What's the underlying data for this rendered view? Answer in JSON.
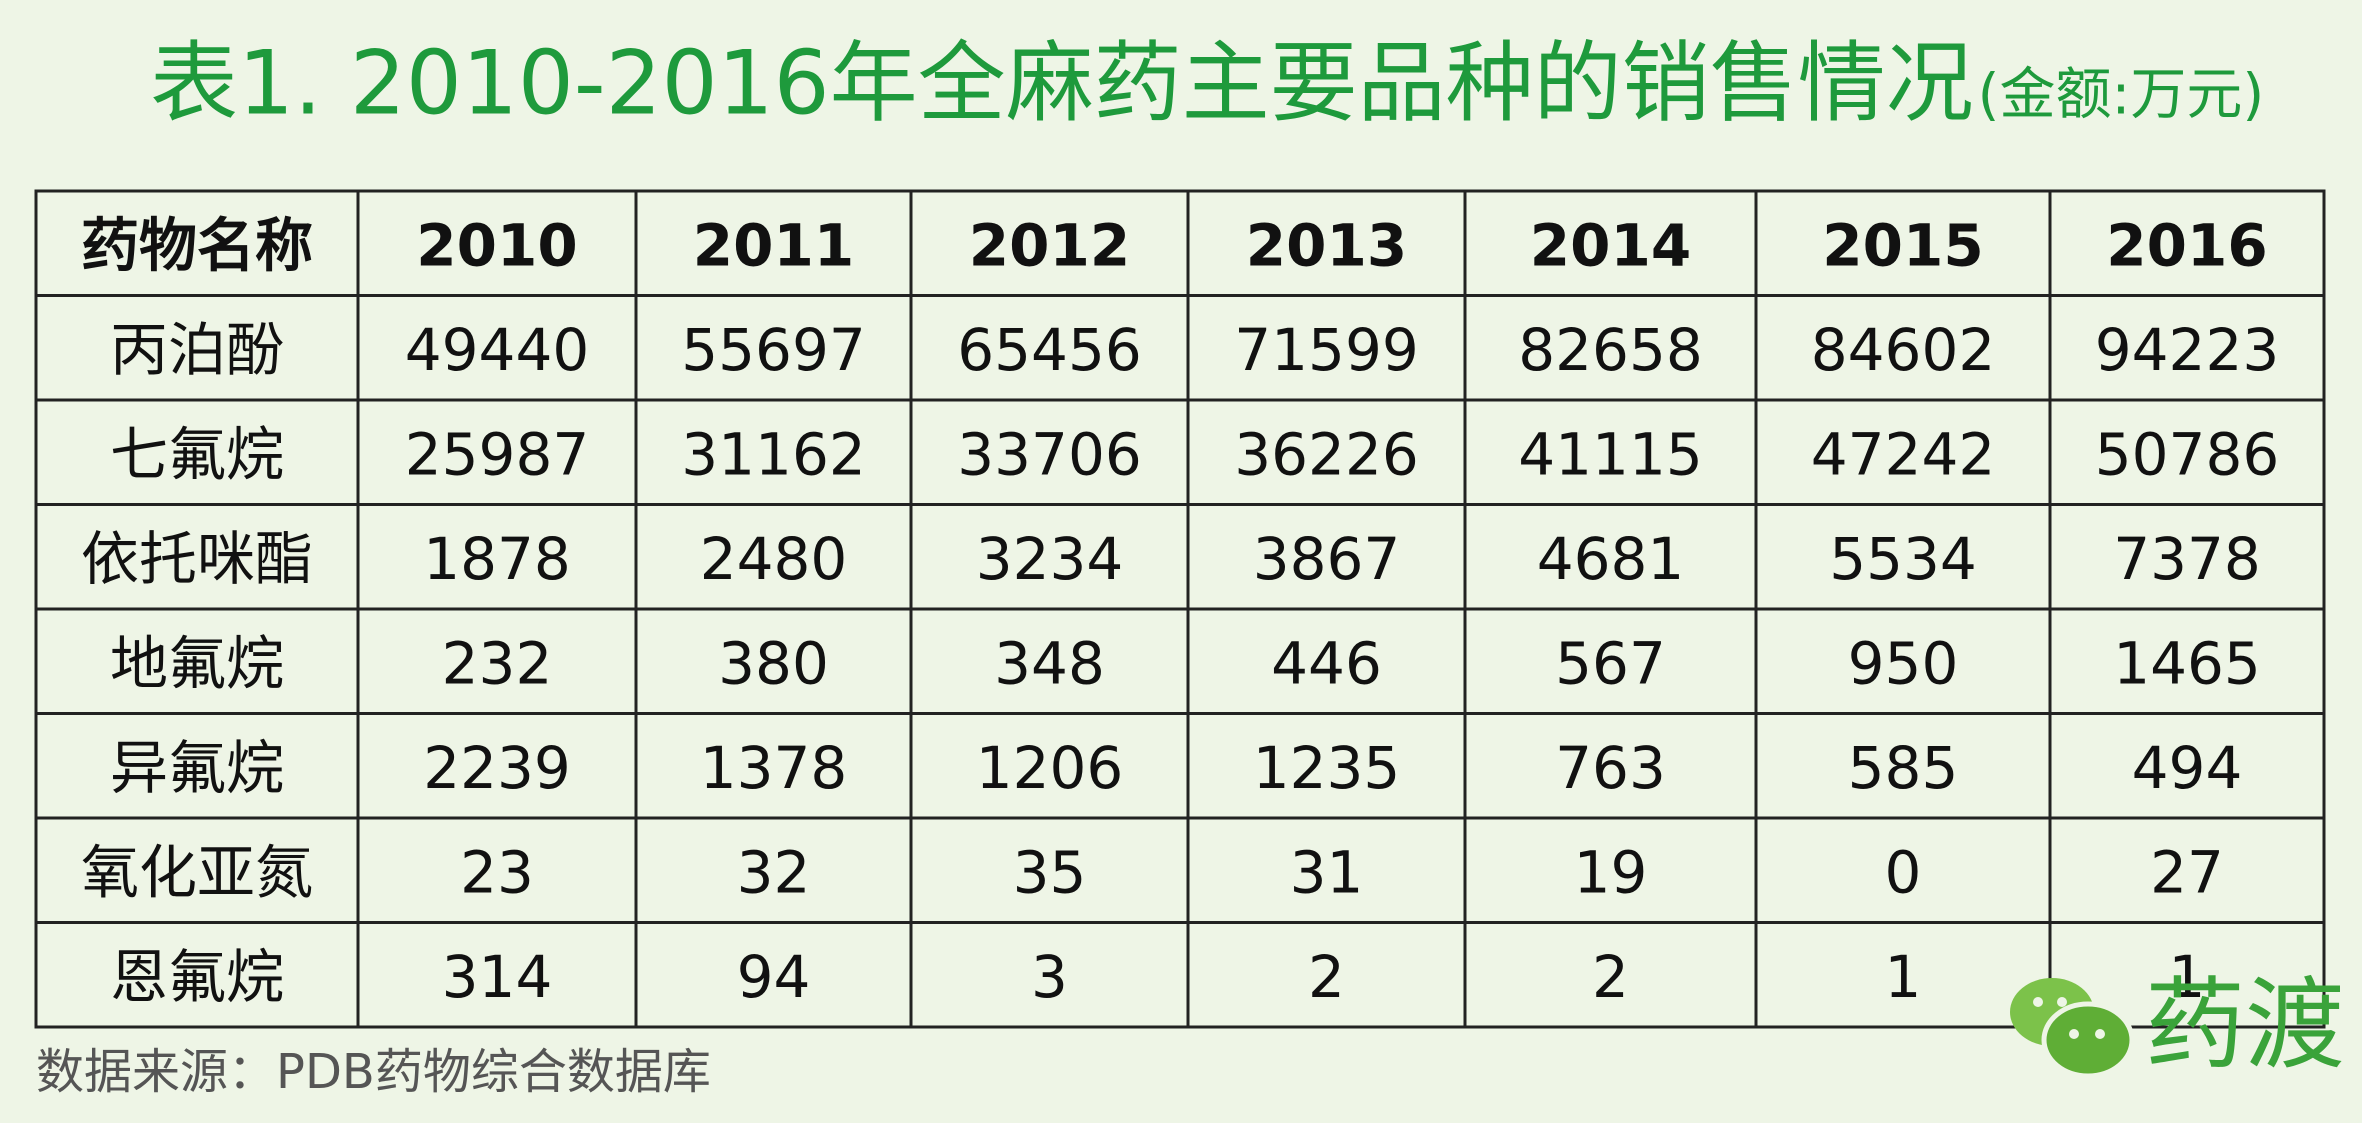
{
  "header": {
    "title": "表1. 2010-2016年全麻药主要品种的销售情况",
    "subtitle": "(金额:万元)"
  },
  "table": {
    "columns": [
      "药物名称",
      "2010",
      "2011",
      "2012",
      "2013",
      "2014",
      "2015",
      "2016"
    ],
    "rows": [
      [
        "丙泊酚",
        49440,
        55697,
        65456,
        71599,
        82658,
        84602,
        94223
      ],
      [
        "七氟烷",
        25987,
        31162,
        33706,
        36226,
        41115,
        47242,
        50786
      ],
      [
        "依托咪酯",
        1878,
        2480,
        3234,
        3867,
        4681,
        5534,
        7378
      ],
      [
        "地氟烷",
        232,
        380,
        348,
        446,
        567,
        950,
        1465
      ],
      [
        "异氟烷",
        2239,
        1378,
        1206,
        1235,
        763,
        585,
        494
      ],
      [
        "氧化亚氮",
        23,
        32,
        35,
        31,
        19,
        0,
        27
      ],
      [
        "恩氟烷",
        314,
        94,
        3,
        2,
        2,
        1,
        1
      ]
    ]
  },
  "source": "数据来源：PDB药物综合数据库",
  "logo": "药渡"
}
